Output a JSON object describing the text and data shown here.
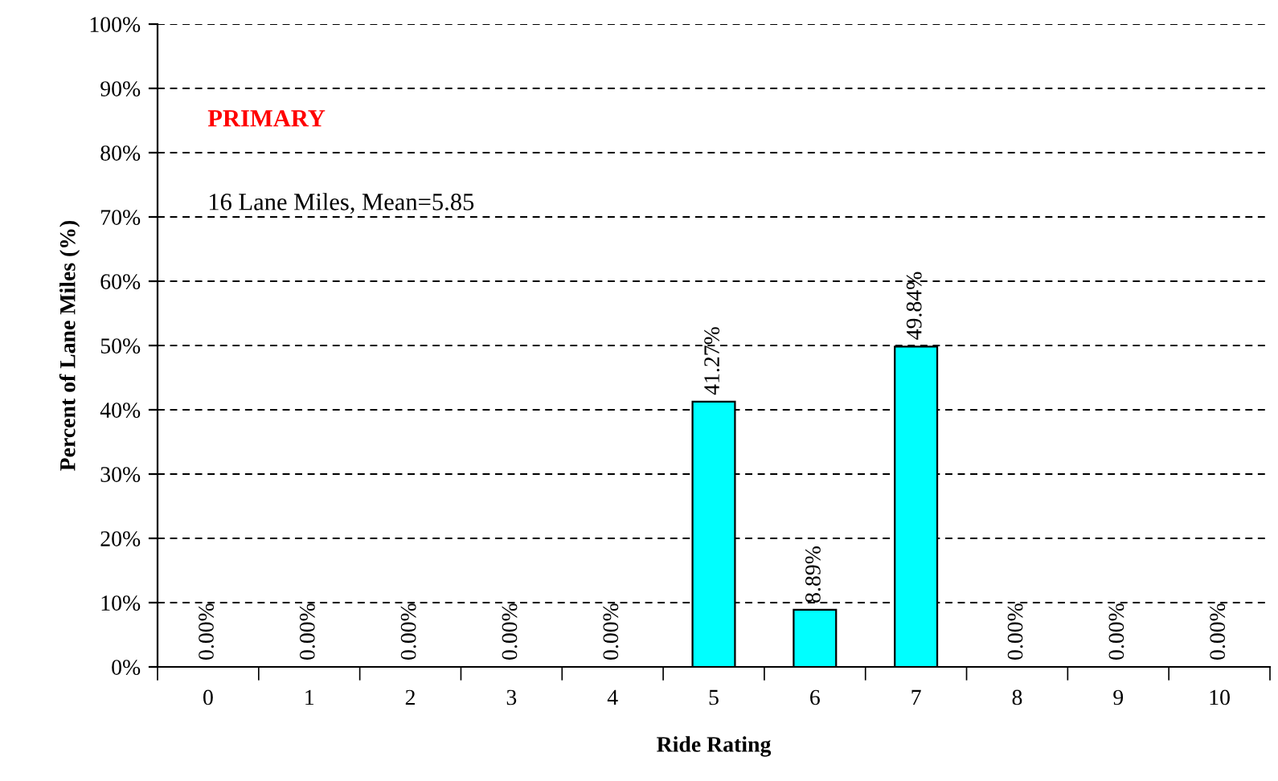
{
  "chart_data": {
    "type": "bar",
    "xlabel": "Ride Rating",
    "ylabel": "Percent of Lane Miles (%)",
    "categories": [
      "0",
      "1",
      "2",
      "3",
      "4",
      "5",
      "6",
      "7",
      "8",
      "9",
      "10"
    ],
    "values": [
      0,
      0,
      0,
      0,
      0,
      41.27,
      8.89,
      49.84,
      0,
      0,
      0
    ],
    "value_labels": [
      "0.00%",
      "0.00%",
      "0.00%",
      "0.00%",
      "0.00%",
      "41.27%",
      "8.89%",
      "49.84%",
      "0.00%",
      "0.00%",
      "0.00%"
    ],
    "color": "#00ffff",
    "ylim": [
      0,
      100
    ],
    "yticks": [
      {
        "value": 0,
        "label": "0%"
      },
      {
        "value": 10,
        "label": "10%"
      },
      {
        "value": 20,
        "label": "20%"
      },
      {
        "value": 30,
        "label": "30%"
      },
      {
        "value": 40,
        "label": "40%"
      },
      {
        "value": 50,
        "label": "50%"
      },
      {
        "value": 60,
        "label": "60%"
      },
      {
        "value": 70,
        "label": "70%"
      },
      {
        "value": 80,
        "label": "80%"
      },
      {
        "value": 90,
        "label": "90%"
      },
      {
        "value": 100,
        "label": "100%"
      }
    ],
    "grid": "y",
    "annotations": [
      "PRIMARY",
      "16 Lane Miles, Mean=5.85"
    ]
  }
}
